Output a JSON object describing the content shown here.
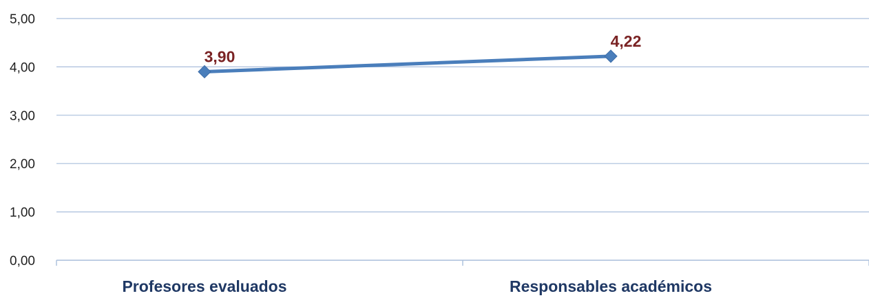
{
  "chart_data": {
    "type": "line",
    "categories": [
      "Profesores evaluados",
      "Responsables académicos"
    ],
    "series": [
      {
        "values": [
          3.9,
          4.22
        ],
        "data_labels": [
          "3,90",
          "4,22"
        ]
      }
    ],
    "ylim": [
      0,
      5
    ],
    "yticks": [
      0,
      1,
      2,
      3,
      4,
      5
    ],
    "ytick_labels": [
      "0,00",
      "1,00",
      "2,00",
      "3,00",
      "4,00",
      "5,00"
    ],
    "title": "",
    "xlabel": "",
    "ylabel": "",
    "grid": true,
    "legend": "none",
    "marker": "diamond",
    "colors": {
      "line": "#4a7ebb",
      "marker": "#4a7ebb",
      "data_label": "#7a2324",
      "grid": "#a9bedc",
      "axis": "#a9bedc",
      "tick_text": "#1f1f1f",
      "category_text": "#1f3864"
    }
  }
}
